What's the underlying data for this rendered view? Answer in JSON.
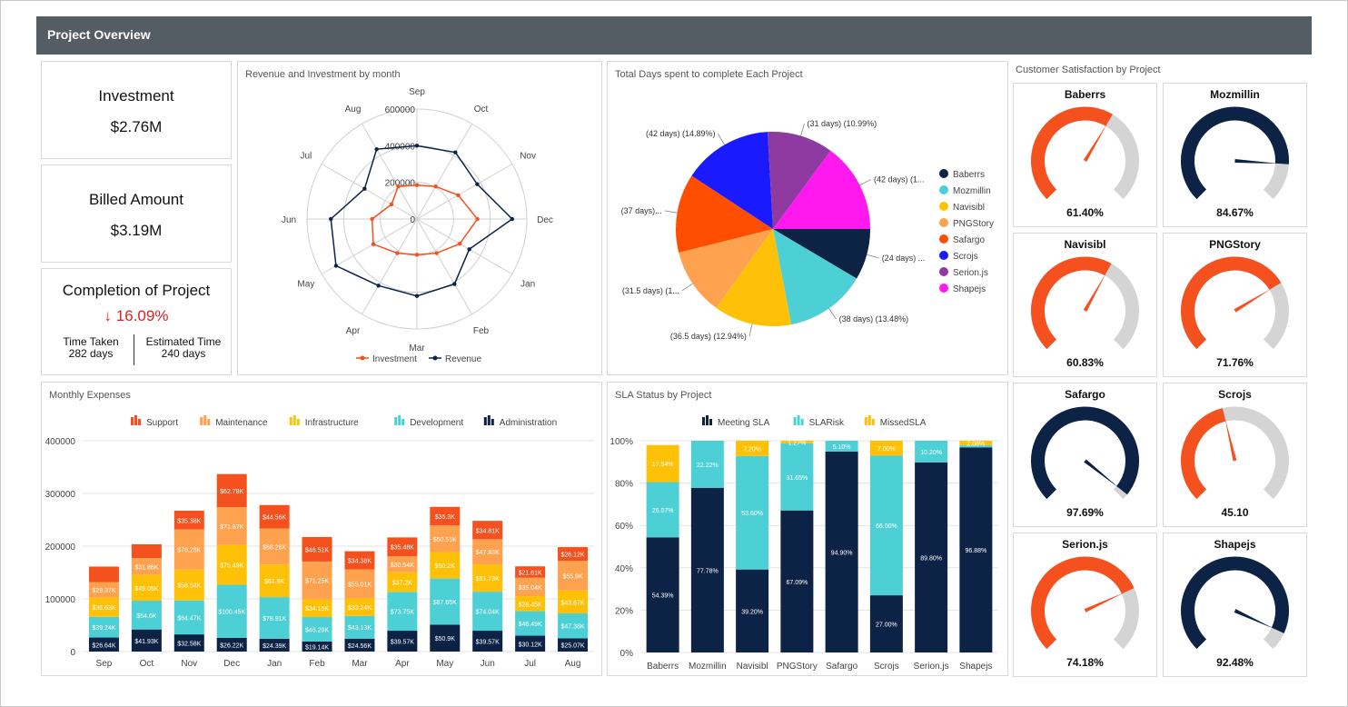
{
  "header": {
    "title": "Project Overview"
  },
  "kpis": {
    "investment": {
      "label": "Investment",
      "value": "$2.76M"
    },
    "billed": {
      "label": "Billed Amount",
      "value": "$3.19M"
    },
    "completion": {
      "label": "Completion of Project",
      "value": "16.09%",
      "arrow": "↓",
      "time_taken_label": "Time Taken",
      "time_taken_value": "282 days",
      "estimated_label": "Estimated Time",
      "estimated_value": "240 days"
    }
  },
  "colors": {
    "orange": "#f4511e",
    "navy": "#0d2346",
    "teal": "#4dd0d5",
    "gold": "#ffc107",
    "amber": "#ffa24f",
    "gray": "#d4d4d4"
  },
  "radar": {
    "title": "Revenue and Investment by month",
    "months": [
      "Sep",
      "Oct",
      "Nov",
      "Dec",
      "Jan",
      "Feb",
      "Mar",
      "Apr",
      "May",
      "Jun",
      "Jul",
      "Aug"
    ],
    "rticks": [
      "600000",
      "400000",
      "200000",
      "0"
    ],
    "legend": [
      "Investment",
      "Revenue"
    ]
  },
  "pie": {
    "title": "Total Days spent to complete Each Project",
    "legend": [
      "Baberrs",
      "Mozmillin",
      "Navisibl",
      "PNGStory",
      "Safargo",
      "Scrojs",
      "Serion.js",
      "Shapejs"
    ]
  },
  "expenses": {
    "title": "Monthly Expenses",
    "legend": [
      "Support",
      "Maintenance",
      "Infrastructure",
      "Development",
      "Administration"
    ],
    "yticks": [
      "400000",
      "300000",
      "200000",
      "100000",
      "0"
    ]
  },
  "sla": {
    "title": "SLA Status by Project",
    "legend": [
      "Meeting SLA",
      "SLARisk",
      "MissedSLA"
    ],
    "yticks": [
      "100%",
      "80%",
      "60%",
      "40%",
      "20%",
      "0%"
    ]
  },
  "satisfaction": {
    "title": "Customer Satisfaction by Project",
    "gauges": [
      {
        "name": "Baberrs",
        "label": "61.40%",
        "value": 61.4,
        "color": "#f4511e"
      },
      {
        "name": "Mozmillin",
        "label": "84.67%",
        "value": 84.67,
        "color": "#0d2346"
      },
      {
        "name": "Navisibl",
        "label": "60.83%",
        "value": 60.83,
        "color": "#f4511e"
      },
      {
        "name": "PNGStory",
        "label": "71.76%",
        "value": 71.76,
        "color": "#f4511e"
      },
      {
        "name": "Safargo",
        "label": "97.69%",
        "value": 97.69,
        "color": "#0d2346"
      },
      {
        "name": "Scrojs",
        "label": "45.10",
        "value": 45.1,
        "color": "#f4511e"
      },
      {
        "name": "Serion.js",
        "label": "74.18%",
        "value": 74.18,
        "color": "#f4511e"
      },
      {
        "name": "Shapejs",
        "label": "92.48%",
        "value": 92.48,
        "color": "#0d2346"
      }
    ]
  },
  "chart_data": [
    {
      "type": "radar",
      "title": "Revenue and Investment by month",
      "categories": [
        "Sep",
        "Oct",
        "Nov",
        "Dec",
        "Jan",
        "Feb",
        "Mar",
        "Apr",
        "May",
        "Jun",
        "Jul",
        "Aug"
      ],
      "rlim": [
        0,
        600000
      ],
      "legend_position": "bottom",
      "series": [
        {
          "name": "Investment",
          "color": "#f4511e",
          "values": [
            185000,
            205000,
            260000,
            330000,
            270000,
            215000,
            195000,
            215000,
            275000,
            245000,
            160000,
            205000
          ]
        },
        {
          "name": "Revenue",
          "color": "#0d2346",
          "values": [
            400000,
            420000,
            380000,
            520000,
            330000,
            410000,
            420000,
            420000,
            510000,
            470000,
            330000,
            440000
          ]
        }
      ]
    },
    {
      "type": "pie",
      "title": "Total Days spent to complete Each Project",
      "legend_position": "right",
      "series": [
        {
          "values": [
            24,
            38,
            36.5,
            31.5,
            37,
            42,
            31,
            42
          ],
          "labels": [
            "(24 days) ...",
            "(38 days) (13.48%)",
            "(36.5 days) (12.94%)",
            "(31.5 days) (1...",
            "(37 days)...",
            "(42 days) (14.89%)",
            "(31 days) (10.99%)",
            "(42 days) (1..."
          ],
          "categories": [
            "Baberrs",
            "Mozmillin",
            "Navisibl",
            "PNGStory",
            "Safargo",
            "Scrojs",
            "Serion.js",
            "Shapejs"
          ],
          "colors": [
            "#0d2346",
            "#4dd0d5",
            "#ffc107",
            "#ffa24f",
            "#ff4e00",
            "#1a1aff",
            "#8e3aa0",
            "#ff19ef"
          ]
        }
      ]
    },
    {
      "type": "bar",
      "stacked": true,
      "title": "Monthly Expenses",
      "legend_position": "top",
      "categories": [
        "Sep",
        "Oct",
        "Nov",
        "Dec",
        "Jan",
        "Feb",
        "Mar",
        "Apr",
        "May",
        "Jun",
        "Jul",
        "Aug"
      ],
      "ylim": [
        0,
        400000
      ],
      "series": [
        {
          "name": "Administration",
          "color": "#0d2346",
          "values": [
            26640,
            41930,
            32580,
            26220,
            24390,
            19140,
            24560,
            39570,
            50900,
            39570,
            30120,
            25070
          ],
          "labels": [
            "$26.64K",
            "$41.93K",
            "$32.58K",
            "$26.22K",
            "$24.39K",
            "$19.14K",
            "$24.56K",
            "$39.57K",
            "$50.9K",
            "$39.57K",
            "$30.12K",
            "$25.07K"
          ]
        },
        {
          "name": "Development",
          "color": "#4dd0d5",
          "values": [
            39240,
            54600,
            64470,
            100450,
            78910,
            46290,
            43130,
            73750,
            87650,
            74040,
            46490,
            47380
          ],
          "labels": [
            "$39.24K",
            "$54.6K",
            "$64.47K",
            "$100.45K",
            "$78.91K",
            "$46.29K",
            "$43.13K",
            "$73.75K",
            "$87.65K",
            "$74.04K",
            "$46.49K",
            "$47.38K"
          ]
        },
        {
          "name": "Infrastructure",
          "color": "#ffc107",
          "values": [
            36630,
            49050,
            58540,
            75490,
            61900,
            34150,
            33240,
            37200,
            50200,
            51730,
            28450,
            43670
          ],
          "labels": [
            "$36.63K",
            "$49.05K",
            "$58.54K",
            "$75.49K",
            "$61.9K",
            "$34.15K",
            "$33.24K",
            "$37.2K",
            "$50.2K",
            "$51.73K",
            "$28.45K",
            "$43.67K"
          ]
        },
        {
          "name": "Maintenance",
          "color": "#ffa24f",
          "values": [
            29370,
            31860,
            76280,
            71870,
            68260,
            71250,
            55010,
            30540,
            50510,
            47830,
            35040,
            55900
          ],
          "labels": [
            "$29.37K",
            "$31.86K",
            "$76.28K",
            "$71.87K",
            "$68.26K",
            "$71.25K",
            "$55.01K",
            "$30.54K",
            "$50.51K",
            "$47.83K",
            "$35.04K",
            "$55.9K"
          ]
        },
        {
          "name": "Support",
          "color": "#f4511e",
          "values": [
            29370,
            26000,
            35380,
            62780,
            44560,
            46510,
            34380,
            35480,
            35300,
            34810,
            21610,
            26120
          ],
          "labels": [
            "",
            "",
            "$35.38K",
            "$62.78K",
            "$44.56K",
            "$46.51K",
            "$34.38K",
            "$35.48K",
            "$35.3K",
            "$34.81K",
            "$21.61K",
            "$26.12K"
          ]
        }
      ]
    },
    {
      "type": "bar",
      "stacked": true,
      "title": "SLA Status by Project",
      "legend_position": "top",
      "categories": [
        "Baberrs",
        "Mozmillin",
        "Navisibl",
        "PNGStory",
        "Safargo",
        "Scrojs",
        "Serion.js",
        "Shapejs"
      ],
      "ylim": [
        0,
        100
      ],
      "series": [
        {
          "name": "Meeting SLA",
          "color": "#0d2346",
          "values": [
            54.39,
            77.78,
            39.2,
            67.09,
            94.9,
            27.0,
            89.8,
            96.88
          ],
          "labels": [
            "54.39%",
            "77.78%",
            "39.20%",
            "67.09%",
            "94.90%",
            "27.00%",
            "89.80%",
            "96.88%"
          ]
        },
        {
          "name": "SLARisk",
          "color": "#4dd0d5",
          "values": [
            26.07,
            22.22,
            53.6,
            31.65,
            5.1,
            66.0,
            10.2,
            1.04
          ],
          "labels": [
            "26.07%",
            "22.22%",
            "53.60%",
            "31.65%",
            "5.10%",
            "66.00%",
            "10.20%",
            ""
          ]
        },
        {
          "name": "MissedSLA",
          "color": "#ffc107",
          "values": [
            17.54,
            0,
            7.2,
            1.27,
            0,
            7.0,
            0,
            2.08
          ],
          "labels": [
            "17.54%",
            "",
            "7.20%",
            "1.27%",
            "",
            "7.00%",
            "",
            "2.08%"
          ]
        }
      ]
    },
    {
      "type": "gauge",
      "title": "Customer Satisfaction by Project",
      "categories": [
        "Baberrs",
        "Mozmillin",
        "Navisibl",
        "PNGStory",
        "Safargo",
        "Scrojs",
        "Serion.js",
        "Shapejs"
      ],
      "values": [
        61.4,
        84.67,
        60.83,
        71.76,
        97.69,
        45.1,
        74.18,
        92.48
      ],
      "ylim": [
        0,
        100
      ]
    }
  ]
}
